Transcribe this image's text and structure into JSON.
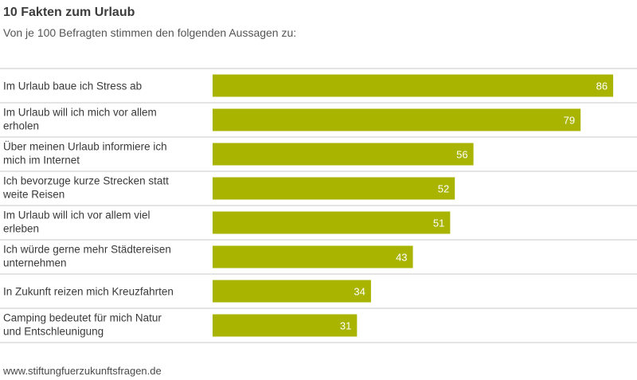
{
  "chart_data": {
    "type": "bar",
    "orientation": "horizontal",
    "title": "10 Fakten zum Urlaub",
    "subtitle": "Von je 100 Befragten stimmen den folgenden Aussagen zu:",
    "categories": [
      [
        "Im Urlaub baue ich Stress ab"
      ],
      [
        "Im Urlaub will ich mich vor allem",
        "erholen"
      ],
      [
        "Über meinen Urlaub informiere ich",
        "mich im Internet"
      ],
      [
        "Ich bevorzuge kurze Strecken statt",
        "weite Reisen"
      ],
      [
        "Im Urlaub will ich vor allem viel",
        "erleben"
      ],
      [
        "Ich würde gerne mehr Städtereisen",
        "unternehmen"
      ],
      [
        "In Zukunft reizen mich Kreuzfahrten"
      ],
      [
        "Camping bedeutet für mich Natur",
        "und Entschleunigung"
      ]
    ],
    "values": [
      86,
      79,
      56,
      52,
      51,
      43,
      34,
      31
    ],
    "xlim": [
      0,
      100
    ],
    "bar_color": "#a8b400",
    "grid": false
  },
  "footer": {
    "source": "www.stiftungfuerzukunftsfragen.de"
  },
  "colors": {
    "separator": "#c8c8c8",
    "bar": "#a8b400"
  }
}
